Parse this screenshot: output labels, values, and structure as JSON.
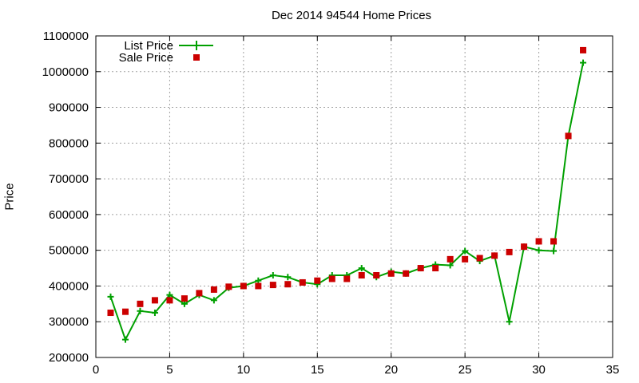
{
  "chart_data": {
    "type": "line",
    "title": "Dec 2014 94544 Home Prices",
    "xlabel": "",
    "ylabel": "Price",
    "xlim": [
      0,
      35
    ],
    "ylim": [
      200000,
      1100000
    ],
    "xticks": [
      0,
      5,
      10,
      15,
      20,
      25,
      30,
      35
    ],
    "yticks": [
      200000,
      300000,
      400000,
      500000,
      600000,
      700000,
      800000,
      900000,
      1000000,
      1100000
    ],
    "grid": true,
    "legend_position": "top-left",
    "x": [
      1,
      2,
      3,
      4,
      5,
      6,
      7,
      8,
      9,
      10,
      11,
      12,
      13,
      14,
      15,
      16,
      17,
      18,
      19,
      20,
      21,
      22,
      23,
      24,
      25,
      26,
      27,
      28,
      29,
      30,
      31,
      32,
      33
    ],
    "series": [
      {
        "name": "List Price",
        "style": "line-plus",
        "color": "#00a000",
        "values": [
          370000,
          250000,
          330000,
          325000,
          375000,
          350000,
          375000,
          360000,
          395000,
          400000,
          415000,
          430000,
          425000,
          410000,
          405000,
          430000,
          430000,
          450000,
          425000,
          440000,
          435000,
          450000,
          460000,
          458000,
          498000,
          470000,
          485000,
          300000,
          510000,
          500000,
          498000,
          820000,
          1025000
        ]
      },
      {
        "name": "Sale Price",
        "style": "marker-square",
        "color": "#cc0000",
        "values": [
          325000,
          328000,
          350000,
          360000,
          360000,
          365000,
          380000,
          390000,
          398000,
          400000,
          400000,
          403000,
          405000,
          410000,
          415000,
          420000,
          420000,
          430000,
          430000,
          435000,
          435000,
          450000,
          450000,
          475000,
          475000,
          478000,
          485000,
          495000,
          510000,
          525000,
          525000,
          820000,
          1060000
        ]
      }
    ]
  }
}
